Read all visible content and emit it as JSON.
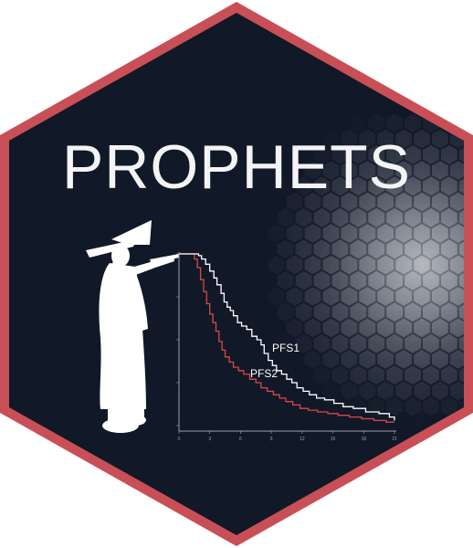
{
  "logo": {
    "title": "PROPHETS",
    "colors": {
      "border": "#c94f56",
      "background": "#111827",
      "title": "#f4f4f6",
      "silhouette": "#ffffff",
      "pfs1_line": "#ffffff",
      "pfs2_line": "#d94848",
      "axis": "#9aa0ad"
    },
    "silhouette_icon": "wizard-with-staff-silhouette",
    "glow_icon": "hexagon-grid-glow"
  },
  "chart_data": {
    "type": "line",
    "subtype": "step (Kaplan-Meier survival)",
    "title": "",
    "xlabel": "",
    "ylabel": "",
    "x_ticks": [
      "0",
      "3",
      "6",
      "9",
      "12",
      "15",
      "18",
      "21"
    ],
    "xlim": [
      0,
      21
    ],
    "ylim": [
      0,
      1
    ],
    "grid": false,
    "legend": "none (curves labeled inline)",
    "series": [
      {
        "name": "PFS1",
        "color": "#ffffff",
        "x": [
          0,
          1.9,
          2.2,
          2.6,
          3.0,
          3.4,
          3.7,
          4.1,
          4.4,
          4.7,
          5.0,
          5.3,
          5.7,
          6.1,
          6.6,
          7.1,
          7.6,
          8.0,
          8.3,
          8.7,
          9.1,
          9.5,
          10.0,
          10.5,
          11.0,
          11.5,
          12.1,
          12.7,
          13.4,
          14.2,
          15.1,
          16.0,
          17.0,
          18.2,
          19.5,
          20.5,
          21.0
        ],
        "y": [
          1.0,
          0.99,
          0.97,
          0.94,
          0.9,
          0.86,
          0.82,
          0.77,
          0.72,
          0.69,
          0.67,
          0.64,
          0.6,
          0.58,
          0.56,
          0.52,
          0.5,
          0.47,
          0.42,
          0.38,
          0.35,
          0.32,
          0.3,
          0.27,
          0.25,
          0.22,
          0.2,
          0.18,
          0.16,
          0.15,
          0.13,
          0.11,
          0.1,
          0.08,
          0.07,
          0.05,
          0.03
        ]
      },
      {
        "name": "PFS2",
        "color": "#d94848",
        "x": [
          0,
          1.5,
          1.8,
          2.1,
          2.4,
          2.7,
          3.0,
          3.3,
          3.6,
          3.9,
          4.2,
          4.5,
          4.9,
          5.3,
          5.8,
          6.3,
          6.9,
          7.5,
          8.0,
          8.6,
          9.2,
          9.8,
          10.4,
          11.1,
          11.8,
          12.6,
          13.5,
          14.5,
          15.5,
          16.6,
          17.8,
          19.0,
          20.2,
          21.0
        ],
        "y": [
          1.0,
          0.97,
          0.92,
          0.85,
          0.78,
          0.71,
          0.65,
          0.6,
          0.55,
          0.49,
          0.44,
          0.4,
          0.37,
          0.34,
          0.32,
          0.3,
          0.27,
          0.25,
          0.22,
          0.2,
          0.18,
          0.16,
          0.14,
          0.12,
          0.1,
          0.09,
          0.08,
          0.07,
          0.06,
          0.05,
          0.04,
          0.03,
          0.02,
          0.02
        ]
      }
    ],
    "annotations": [
      "PFS1",
      "PFS2"
    ]
  }
}
